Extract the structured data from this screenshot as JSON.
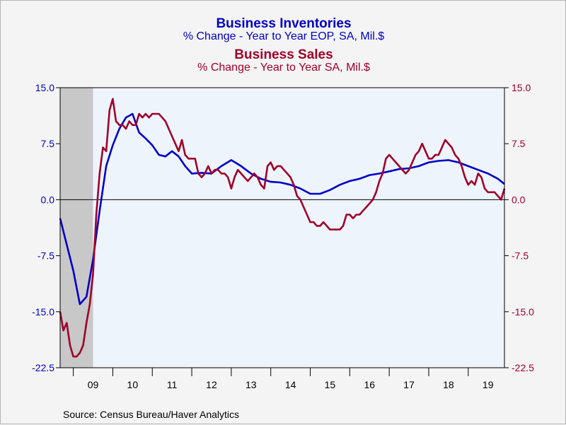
{
  "chart_data": {
    "type": "line",
    "titles": [
      {
        "text": "Business Inventories",
        "color": "#0000c8"
      },
      {
        "text": "% Change - Year to Year    EOP, SA, Mil.$",
        "color": "#0000c8"
      },
      {
        "text": "Business Sales",
        "color": "#a00028"
      },
      {
        "text": "% Change - Year to Year    SA, Mil.$",
        "color": "#a00028"
      }
    ],
    "x_tick_labels": [
      "09",
      "10",
      "11",
      "12",
      "13",
      "14",
      "15",
      "16",
      "17",
      "18",
      "19"
    ],
    "x_range": [
      2008.667,
      2019.917
    ],
    "ylim": [
      -22.5,
      15.0
    ],
    "y_ticks": [
      15.0,
      7.5,
      0.0,
      -7.5,
      -15.0,
      -22.5
    ],
    "y_tick_labels_left": [
      "15.0",
      "7.5",
      "0.0",
      "-7.5",
      "-15.0",
      "-22.5"
    ],
    "y_tick_labels_right": [
      "15.0",
      "7.5",
      "0.0",
      "-7.5",
      "-15.0",
      "-22.5"
    ],
    "left_axis_color": "#0000c8",
    "right_axis_color": "#a00028",
    "recession_shading": [
      2008.667,
      2009.5
    ],
    "zero_line": true,
    "grid": false,
    "series": [
      {
        "color": "#0000c8",
        "x": [
          2008.667,
          2008.833,
          2009.0,
          2009.167,
          2009.333,
          2009.5,
          2009.667,
          2009.833,
          2010.0,
          2010.167,
          2010.333,
          2010.5,
          2010.667,
          2010.833,
          2011.0,
          2011.167,
          2011.333,
          2011.5,
          2011.667,
          2011.833,
          2012.0,
          2012.25,
          2012.5,
          2012.75,
          2013.0,
          2013.25,
          2013.5,
          2013.75,
          2014.0,
          2014.25,
          2014.5,
          2014.75,
          2015.0,
          2015.25,
          2015.5,
          2015.75,
          2016.0,
          2016.25,
          2016.5,
          2016.75,
          2017.0,
          2017.25,
          2017.5,
          2017.75,
          2018.0,
          2018.25,
          2018.5,
          2018.75,
          2019.0,
          2019.25,
          2019.5,
          2019.75,
          2019.917
        ],
        "values": [
          -2.5,
          -6.0,
          -9.5,
          -14.0,
          -13.0,
          -8.0,
          -1.5,
          4.5,
          7.3,
          9.5,
          11.0,
          11.5,
          9.0,
          8.2,
          7.3,
          6.0,
          5.8,
          6.5,
          5.8,
          4.5,
          3.5,
          3.6,
          3.5,
          4.5,
          5.3,
          4.5,
          3.5,
          2.8,
          2.4,
          2.3,
          2.0,
          1.5,
          0.8,
          0.8,
          1.3,
          2.0,
          2.5,
          2.8,
          3.3,
          3.5,
          3.8,
          4.1,
          4.2,
          4.5,
          5.0,
          5.2,
          5.3,
          5.0,
          4.5,
          4.0,
          3.5,
          2.8,
          2.1
        ]
      },
      {
        "color": "#a00028",
        "x": [
          2008.667,
          2008.75,
          2008.833,
          2008.917,
          2009.0,
          2009.083,
          2009.167,
          2009.25,
          2009.333,
          2009.417,
          2009.5,
          2009.583,
          2009.667,
          2009.75,
          2009.833,
          2009.917,
          2010.0,
          2010.083,
          2010.167,
          2010.25,
          2010.333,
          2010.417,
          2010.5,
          2010.583,
          2010.667,
          2010.75,
          2010.833,
          2010.917,
          2011.0,
          2011.083,
          2011.167,
          2011.25,
          2011.333,
          2011.417,
          2011.5,
          2011.583,
          2011.667,
          2011.75,
          2011.833,
          2011.917,
          2012.0,
          2012.083,
          2012.167,
          2012.25,
          2012.333,
          2012.417,
          2012.5,
          2012.583,
          2012.667,
          2012.75,
          2012.833,
          2012.917,
          2013.0,
          2013.083,
          2013.167,
          2013.25,
          2013.333,
          2013.417,
          2013.5,
          2013.583,
          2013.667,
          2013.75,
          2013.833,
          2013.917,
          2014.0,
          2014.083,
          2014.167,
          2014.25,
          2014.333,
          2014.417,
          2014.5,
          2014.583,
          2014.667,
          2014.75,
          2014.833,
          2014.917,
          2015.0,
          2015.083,
          2015.167,
          2015.25,
          2015.333,
          2015.417,
          2015.5,
          2015.583,
          2015.667,
          2015.75,
          2015.833,
          2015.917,
          2016.0,
          2016.083,
          2016.167,
          2016.25,
          2016.333,
          2016.417,
          2016.5,
          2016.583,
          2016.667,
          2016.75,
          2016.833,
          2016.917,
          2017.0,
          2017.083,
          2017.167,
          2017.25,
          2017.333,
          2017.417,
          2017.5,
          2017.583,
          2017.667,
          2017.75,
          2017.833,
          2017.917,
          2018.0,
          2018.083,
          2018.167,
          2018.25,
          2018.333,
          2018.417,
          2018.5,
          2018.583,
          2018.667,
          2018.75,
          2018.833,
          2018.917,
          2019.0,
          2019.083,
          2019.167,
          2019.25,
          2019.333,
          2019.417,
          2019.5,
          2019.583,
          2019.667,
          2019.75,
          2019.833,
          2019.917
        ],
        "values": [
          -15.0,
          -17.5,
          -16.5,
          -19.5,
          -21.0,
          -21.0,
          -20.5,
          -19.5,
          -16.5,
          -14.0,
          -10.0,
          -2.0,
          3.5,
          7.0,
          6.5,
          12.0,
          13.5,
          10.5,
          10.0,
          10.0,
          9.5,
          10.5,
          10.0,
          10.0,
          11.5,
          11.0,
          11.5,
          11.0,
          11.5,
          11.5,
          11.5,
          11.0,
          10.5,
          9.5,
          8.5,
          7.5,
          6.5,
          8.0,
          6.0,
          5.5,
          5.5,
          5.5,
          3.5,
          3.0,
          3.5,
          4.5,
          3.5,
          4.0,
          4.0,
          3.5,
          3.5,
          3.0,
          1.5,
          3.0,
          4.0,
          3.5,
          3.0,
          2.5,
          3.0,
          3.5,
          3.0,
          2.0,
          1.5,
          4.5,
          5.0,
          4.0,
          4.5,
          4.5,
          4.0,
          3.5,
          3.0,
          2.0,
          0.5,
          0.0,
          -1.0,
          -2.0,
          -3.0,
          -3.0,
          -3.5,
          -3.5,
          -3.0,
          -3.5,
          -4.0,
          -4.0,
          -4.0,
          -4.0,
          -3.5,
          -2.0,
          -2.0,
          -2.5,
          -2.0,
          -2.0,
          -1.5,
          -1.0,
          -0.5,
          0.0,
          1.0,
          2.5,
          3.5,
          5.5,
          6.0,
          5.5,
          5.0,
          4.5,
          4.0,
          3.5,
          4.0,
          5.0,
          6.0,
          6.5,
          7.5,
          6.5,
          5.5,
          5.5,
          6.0,
          6.0,
          7.0,
          8.0,
          7.5,
          7.0,
          6.0,
          5.5,
          4.5,
          3.0,
          2.0,
          2.5,
          2.0,
          3.5,
          3.0,
          1.5,
          1.0,
          1.0,
          1.0,
          0.5,
          0.0,
          1.5
        ]
      }
    ]
  },
  "footer": {
    "source": "Source:  Census Bureau/Haver Analytics"
  }
}
